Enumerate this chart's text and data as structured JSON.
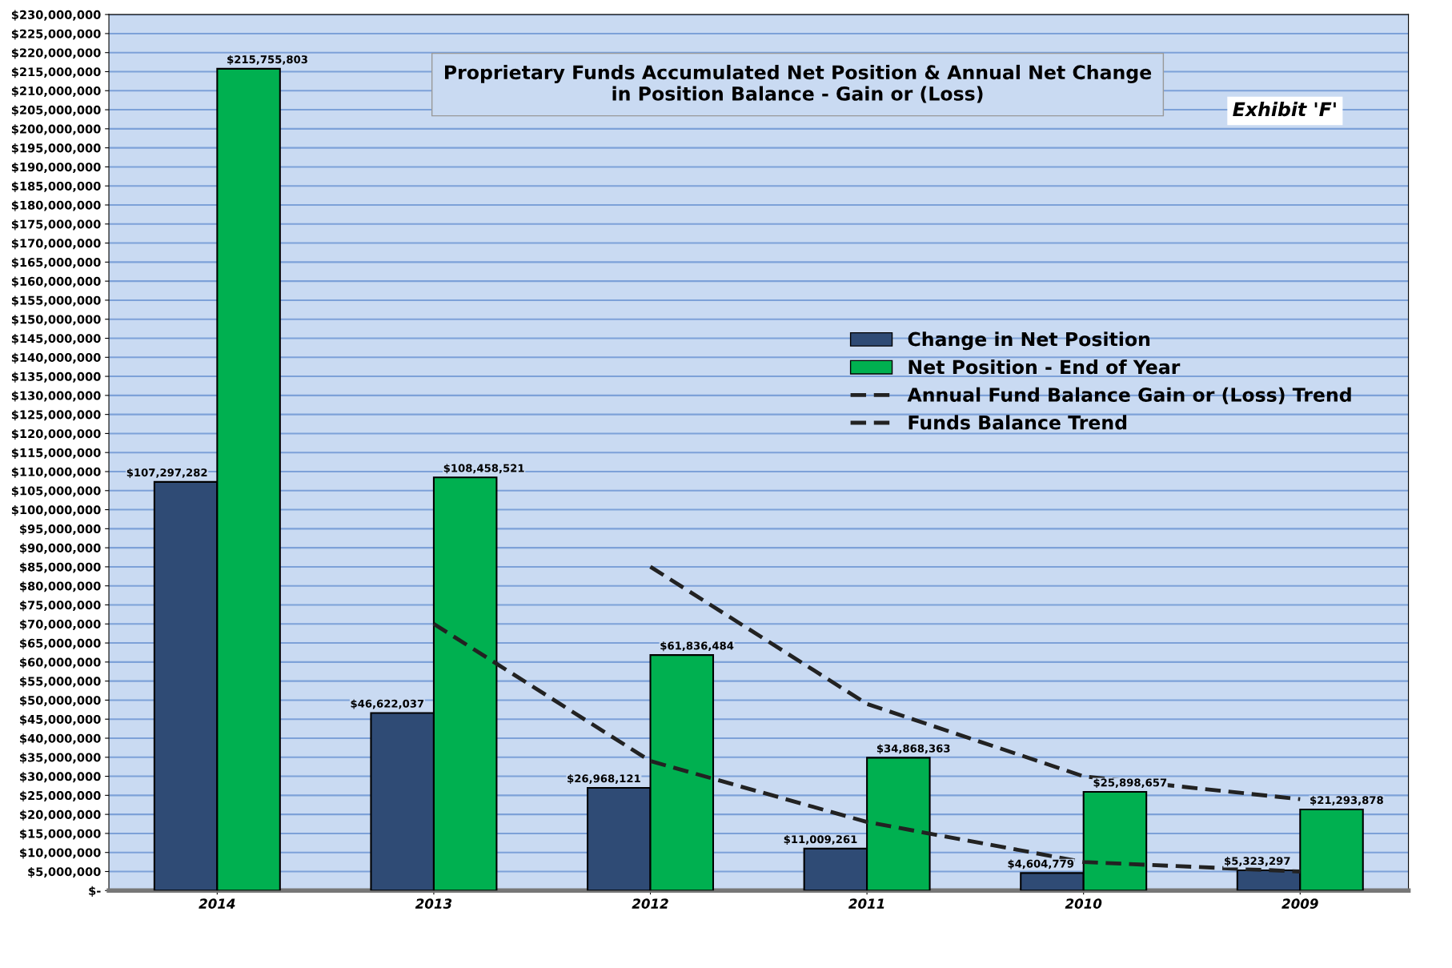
{
  "chart_data": {
    "type": "bar",
    "title": "Proprietary Funds Accumulated Net Position & Annual Net Change in Position Balance - Gain or (Loss)",
    "categories": [
      "2014",
      "2013",
      "2012",
      "2011",
      "2010",
      "2009"
    ],
    "series": [
      {
        "name": "Change in Net Position",
        "color": "#2f4b75",
        "values": [
          107297282,
          46622037,
          26968121,
          11009261,
          4604779,
          5323297
        ],
        "value_labels": [
          "$107,297,282",
          "$46,622,037",
          "$26,968,121",
          "$11,009,261",
          "$4,604,779",
          "$5,323,297"
        ]
      },
      {
        "name": "Net Position - End of Year",
        "color": "#00b050",
        "values": [
          215755803,
          108458521,
          61836484,
          34868363,
          25898657,
          21293878
        ],
        "value_labels": [
          "$215,755,803",
          "$108,458,521",
          "$61,836,484",
          "$34,868,363",
          "$25,898,657",
          "$21,293,878"
        ]
      },
      {
        "name": "Annual Fund Balance Gain or (Loss) Trend",
        "type": "line",
        "line_style": "dashed",
        "color": "#222222",
        "values": [
          null,
          70000000,
          34000000,
          18000000,
          7500000,
          5000000
        ]
      },
      {
        "name": "Funds Balance Trend",
        "type": "line",
        "line_style": "dashed",
        "color": "#222222",
        "values": [
          null,
          null,
          85000000,
          49000000,
          30000000,
          24000000
        ]
      }
    ],
    "ylim": [
      0,
      230000000
    ],
    "yticks": [
      {
        "value": 0,
        "label": "$-"
      },
      {
        "value": 5000000,
        "label": "$5,000,000"
      },
      {
        "value": 10000000,
        "label": "$10,000,000"
      },
      {
        "value": 15000000,
        "label": "$15,000,000"
      },
      {
        "value": 20000000,
        "label": "$20,000,000"
      },
      {
        "value": 25000000,
        "label": "$25,000,000"
      },
      {
        "value": 30000000,
        "label": "$30,000,000"
      },
      {
        "value": 35000000,
        "label": "$35,000,000"
      },
      {
        "value": 40000000,
        "label": "$40,000,000"
      },
      {
        "value": 45000000,
        "label": "$45,000,000"
      },
      {
        "value": 50000000,
        "label": "$50,000,000"
      },
      {
        "value": 55000000,
        "label": "$55,000,000"
      },
      {
        "value": 60000000,
        "label": "$60,000,000"
      },
      {
        "value": 65000000,
        "label": "$65,000,000"
      },
      {
        "value": 70000000,
        "label": "$70,000,000"
      },
      {
        "value": 75000000,
        "label": "$75,000,000"
      },
      {
        "value": 80000000,
        "label": "$80,000,000"
      },
      {
        "value": 85000000,
        "label": "$85,000,000"
      },
      {
        "value": 90000000,
        "label": "$90,000,000"
      },
      {
        "value": 95000000,
        "label": "$95,000,000"
      },
      {
        "value": 100000000,
        "label": "$100,000,000"
      },
      {
        "value": 105000000,
        "label": "$105,000,000"
      },
      {
        "value": 110000000,
        "label": "$110,000,000"
      },
      {
        "value": 115000000,
        "label": "$115,000,000"
      },
      {
        "value": 120000000,
        "label": "$120,000,000"
      },
      {
        "value": 125000000,
        "label": "$125,000,000"
      },
      {
        "value": 130000000,
        "label": "$130,000,000"
      },
      {
        "value": 135000000,
        "label": "$135,000,000"
      },
      {
        "value": 140000000,
        "label": "$140,000,000"
      },
      {
        "value": 145000000,
        "label": "$145,000,000"
      },
      {
        "value": 150000000,
        "label": "$150,000,000"
      },
      {
        "value": 155000000,
        "label": "$155,000,000"
      },
      {
        "value": 160000000,
        "label": "$160,000,000"
      },
      {
        "value": 165000000,
        "label": "$165,000,000"
      },
      {
        "value": 170000000,
        "label": "$170,000,000"
      },
      {
        "value": 175000000,
        "label": "$175,000,000"
      },
      {
        "value": 180000000,
        "label": "$180,000,000"
      },
      {
        "value": 185000000,
        "label": "$185,000,000"
      },
      {
        "value": 190000000,
        "label": "$190,000,000"
      },
      {
        "value": 195000000,
        "label": "$195,000,000"
      },
      {
        "value": 200000000,
        "label": "$200,000,000"
      },
      {
        "value": 205000000,
        "label": "$205,000,000"
      },
      {
        "value": 210000000,
        "label": "$210,000,000"
      },
      {
        "value": 215000000,
        "label": "$215,000,000"
      },
      {
        "value": 220000000,
        "label": "$220,000,000"
      },
      {
        "value": 225000000,
        "label": "$225,000,000"
      },
      {
        "value": 230000000,
        "label": "$230,000,000"
      }
    ],
    "grid": "y",
    "legend": "right",
    "annotations": [
      "Exhibit 'F'"
    ]
  }
}
